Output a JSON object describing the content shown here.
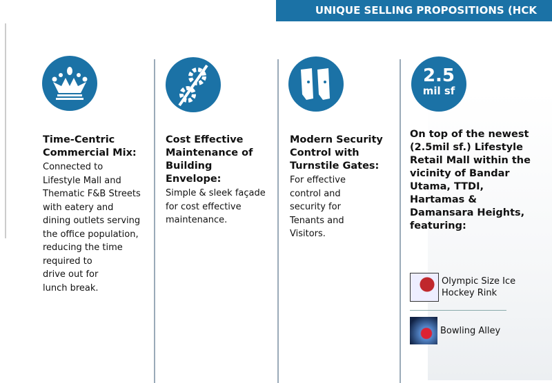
{
  "header": {
    "title": "UNIQUE SELLING PROPOSITIONS (HCK TOWER)"
  },
  "colors": {
    "accent": "#1b72a6"
  },
  "columns": [
    {
      "icon": "crown-cutlery-icon",
      "title": "Time-Centric Commercial Mix:",
      "body": [
        "Connected to",
        "Lifestyle Mall and",
        "Thematic F&B Streets",
        "with eatery and",
        "dining outlets serving",
        "the office population,",
        "reducing the time",
        "required to",
        "drive out  for",
        "lunch break."
      ]
    },
    {
      "icon": "gear-wrench-icon",
      "title": "Cost Effective Maintenance of Building Envelope:",
      "body": [
        "Simple & sleek façade",
        "for cost effective",
        "maintenance."
      ]
    },
    {
      "icon": "turnstile-icon",
      "title": "Modern Security Control with Turnstile Gates:",
      "body": [
        "For effective",
        "control and",
        "security for",
        "Tenants and",
        "Visitors."
      ]
    },
    {
      "badge_value": "2.5",
      "badge_unit": "mil sf",
      "title": "On top of the newest (2.5mil sf.) Lifestyle Retail Mall within the vicinity of  Bandar Utama, TTDI, Hartamas & Damansara Heights, featuring:",
      "features": [
        {
          "icon": "ice-hockey-icon",
          "label": "Olympic Size Ice Hockey Rink"
        },
        {
          "icon": "bowling-icon",
          "label": "Bowling Alley"
        }
      ]
    }
  ]
}
